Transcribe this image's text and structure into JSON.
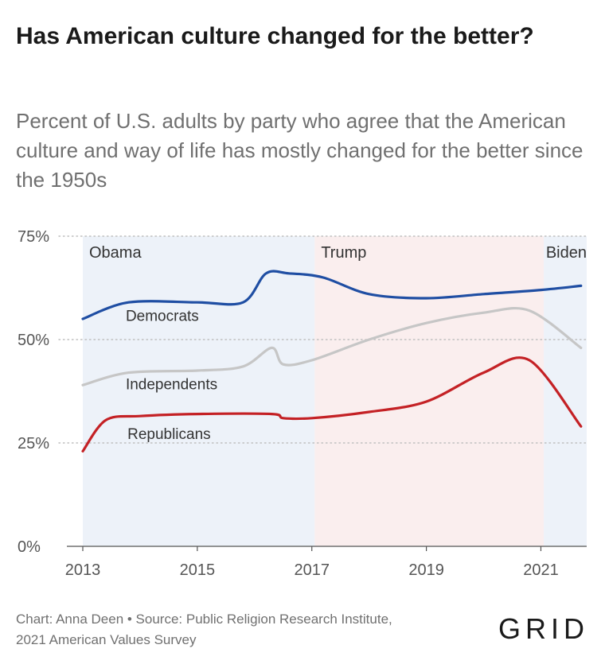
{
  "chart_data": {
    "type": "line",
    "title": "Has American culture changed for the better?",
    "subtitle": "Percent of U.S. adults by party who agree that the American culture and way of life has mostly changed for the better since the 1950s",
    "xlim": [
      2013,
      2021.8
    ],
    "ylim": [
      0,
      75
    ],
    "x_ticks": [
      "2013",
      "2015",
      "2017",
      "2019",
      "2021"
    ],
    "y_ticks": [
      "0%",
      "25%",
      "50%",
      "75%"
    ],
    "grid": true,
    "periods": [
      {
        "label": "Obama",
        "start": 2013,
        "end": 2017.05,
        "color": "#edf2f9"
      },
      {
        "label": "Trump",
        "start": 2017.05,
        "end": 2021.05,
        "color": "#faeeee"
      },
      {
        "label": "Biden",
        "start": 2021.05,
        "end": 2021.8,
        "color": "#edf2f9"
      }
    ],
    "series": [
      {
        "name": "Democrats",
        "color": "#1f4ea3",
        "x": [
          2013,
          2013.8,
          2015,
          2015.8,
          2016.2,
          2016.6,
          2017.2,
          2018,
          2019,
          2020,
          2021,
          2021.7
        ],
        "y": [
          55,
          59,
          59,
          59,
          66,
          66,
          65,
          61,
          60,
          61,
          62,
          63
        ]
      },
      {
        "name": "Independents",
        "color": "#c6c6c6",
        "x": [
          2013,
          2013.8,
          2015,
          2015.8,
          2016.3,
          2016.5,
          2017,
          2018,
          2019,
          2020,
          2020.8,
          2021.7
        ],
        "y": [
          39,
          42,
          42.5,
          43.5,
          48,
          44,
          45,
          50,
          54,
          56.5,
          57,
          48
        ]
      },
      {
        "name": "Republicans",
        "color": "#c42125",
        "x": [
          2013,
          2013.4,
          2014,
          2015,
          2016.3,
          2016.5,
          2017,
          2018,
          2019,
          2020,
          2020.8,
          2021.7
        ],
        "y": [
          23,
          30.5,
          31.5,
          32,
          32,
          31,
          31,
          32.5,
          35,
          42,
          45,
          29
        ]
      }
    ],
    "series_labels": [
      {
        "text": "Democrats",
        "x": 2013.75,
        "y": 54.5
      },
      {
        "text": "Independents",
        "x": 2013.75,
        "y": 38
      },
      {
        "text": "Republicans",
        "x": 2013.78,
        "y": 26
      }
    ]
  },
  "footer": {
    "line1": "Chart: Anna Deen • Source: Public Religion Research Institute,",
    "line2": "2021 American Values Survey"
  },
  "logo": "GRID"
}
